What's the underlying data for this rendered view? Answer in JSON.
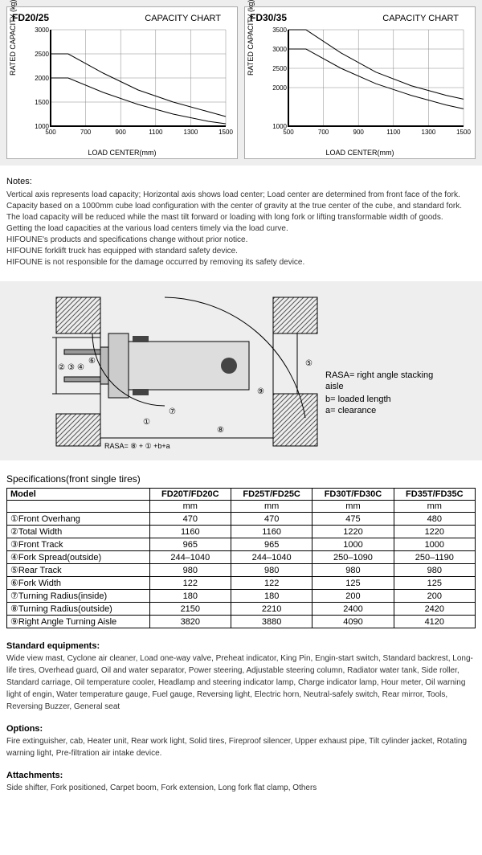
{
  "charts": [
    {
      "model": "FD20/25",
      "title": "CAPACITY CHART",
      "ylabel": "RATED CAPACITY (kg)",
      "xlabel": "LOAD CENTER(mm)",
      "y_ticks": [
        1000,
        1500,
        2000,
        2500,
        3000
      ],
      "x_ticks": [
        500,
        700,
        900,
        1100,
        1300,
        1500
      ],
      "ylim": [
        1000,
        3000
      ],
      "xlim": [
        500,
        1500
      ],
      "grid_color": "#888",
      "background_color": "#ffffff",
      "curves": [
        {
          "points": [
            [
              500,
              2500
            ],
            [
              600,
              2500
            ],
            [
              800,
              2100
            ],
            [
              1000,
              1750
            ],
            [
              1200,
              1500
            ],
            [
              1400,
              1300
            ],
            [
              1500,
              1200
            ]
          ],
          "color": "#000",
          "width": 1
        },
        {
          "points": [
            [
              500,
              2000
            ],
            [
              600,
              2000
            ],
            [
              800,
              1700
            ],
            [
              1000,
              1450
            ],
            [
              1200,
              1250
            ],
            [
              1400,
              1100
            ],
            [
              1500,
              1050
            ]
          ],
          "color": "#000",
          "width": 1
        }
      ]
    },
    {
      "model": "FD30/35",
      "title": "CAPACITY CHART",
      "ylabel": "RATED CAPACITY (kg)",
      "xlabel": "LOAD CENTER(mm)",
      "y_ticks": [
        1000,
        2000,
        2500,
        3000,
        3500
      ],
      "x_ticks": [
        500,
        700,
        900,
        1100,
        1300,
        1500
      ],
      "ylim": [
        1000,
        3500
      ],
      "xlim": [
        500,
        1500
      ],
      "grid_color": "#888",
      "background_color": "#ffffff",
      "curves": [
        {
          "points": [
            [
              500,
              3500
            ],
            [
              600,
              3500
            ],
            [
              800,
              2900
            ],
            [
              1000,
              2400
            ],
            [
              1200,
              2050
            ],
            [
              1400,
              1800
            ],
            [
              1500,
              1700
            ]
          ],
          "color": "#000",
          "width": 1
        },
        {
          "points": [
            [
              500,
              3000
            ],
            [
              600,
              3000
            ],
            [
              800,
              2500
            ],
            [
              1000,
              2100
            ],
            [
              1200,
              1800
            ],
            [
              1400,
              1550
            ],
            [
              1500,
              1450
            ]
          ],
          "color": "#000",
          "width": 1
        }
      ]
    }
  ],
  "notes": {
    "title": "Notes:",
    "lines": [
      "Vertical axis represents load capacity; Horizontal axis shows load center; Load center are determined from front face of the fork.",
      "Capacity based on a 1000mm cube load configuration with the center of gravity at the true center of the cube, and standard fork.",
      "The load capacity will be reduced while the mast tilt forward or loading with long fork or lifting transformable width of goods.",
      "Getting the load capacities at the various load centers timely via the load curve.",
      "HIFOUNE's products and specifications change without prior notice.",
      "HIFOUNE forklift truck has equipped with standard safety device.",
      "HIFOUNE is not responsible for the damage occurred by removing its safety device."
    ]
  },
  "diagram": {
    "legend_title": "RASA= right angle stacking aisle",
    "legend_b": "b= loaded length",
    "legend_a": "a= clearance",
    "formula_label": "RASA= ⑧ + ① +b+a",
    "markers": [
      "①",
      "②",
      "③",
      "④",
      "⑤",
      "⑥",
      "⑦",
      "⑧",
      "⑨"
    ],
    "hatch_color": "#555"
  },
  "spec_title": "Specifications(front single tires)",
  "spec_table": {
    "header_model": "Model",
    "columns": [
      "FD20T/FD20C",
      "FD25T/FD25C",
      "FD30T/FD30C",
      "FD35T/FD35C"
    ],
    "unit_row": [
      "mm",
      "mm",
      "mm",
      "mm"
    ],
    "rows": [
      {
        "label": "①Front Overhang",
        "vals": [
          "470",
          "470",
          "475",
          "480"
        ]
      },
      {
        "label": "②Total Width",
        "vals": [
          "1160",
          "1160",
          "1220",
          "1220"
        ]
      },
      {
        "label": "③Front Track",
        "vals": [
          "965",
          "965",
          "1000",
          "1000"
        ]
      },
      {
        "label": "④Fork Spread(outside)",
        "vals": [
          "244–1040",
          "244–1040",
          "250–1090",
          "250–1190"
        ]
      },
      {
        "label": "⑤Rear Track",
        "vals": [
          "980",
          "980",
          "980",
          "980"
        ]
      },
      {
        "label": "⑥Fork Width",
        "vals": [
          "122",
          "122",
          "125",
          "125"
        ]
      },
      {
        "label": "⑦Turning Radius(inside)",
        "vals": [
          "180",
          "180",
          "200",
          "200"
        ]
      },
      {
        "label": "⑧Turning Radius(outside)",
        "vals": [
          "2150",
          "2210",
          "2400",
          "2420"
        ]
      },
      {
        "label": "⑨Right Angle Turning Aisle",
        "vals": [
          "3820",
          "3880",
          "4090",
          "4120"
        ]
      }
    ]
  },
  "sections": {
    "std_title": "Standard equipments:",
    "std_text": "Wide view mast, Cyclone air cleaner, Load one-way valve, Preheat indicator, King Pin, Engin-start switch, Standard backrest, Long-life tires, Overhead guard, Oil and water separator, Power steering, Adjustable steering column, Radiator water tank, Side roller, Standard carriage, Oil temperature cooler, Headlamp and steering indicator lamp, Charge indicator lamp, Hour meter, Oil warning light of engin, Water temperature gauge, Fuel gauge, Reversing light, Electric horn, Neutral-safely switch, Rear mirror, Tools, Reversing Buzzer, General seat",
    "opt_title": "Options:",
    "opt_text": "Fire extinguisher, cab, Heater unit, Rear work light, Solid tires, Fireproof silencer, Upper exhaust pipe, Tilt cylinder jacket, Rotating warning light, Pre-filtration air intake device.",
    "att_title": "Attachments:",
    "att_text": "Side shifter, Fork positioned, Carpet boom, Fork extension, Long fork flat clamp, Others"
  }
}
